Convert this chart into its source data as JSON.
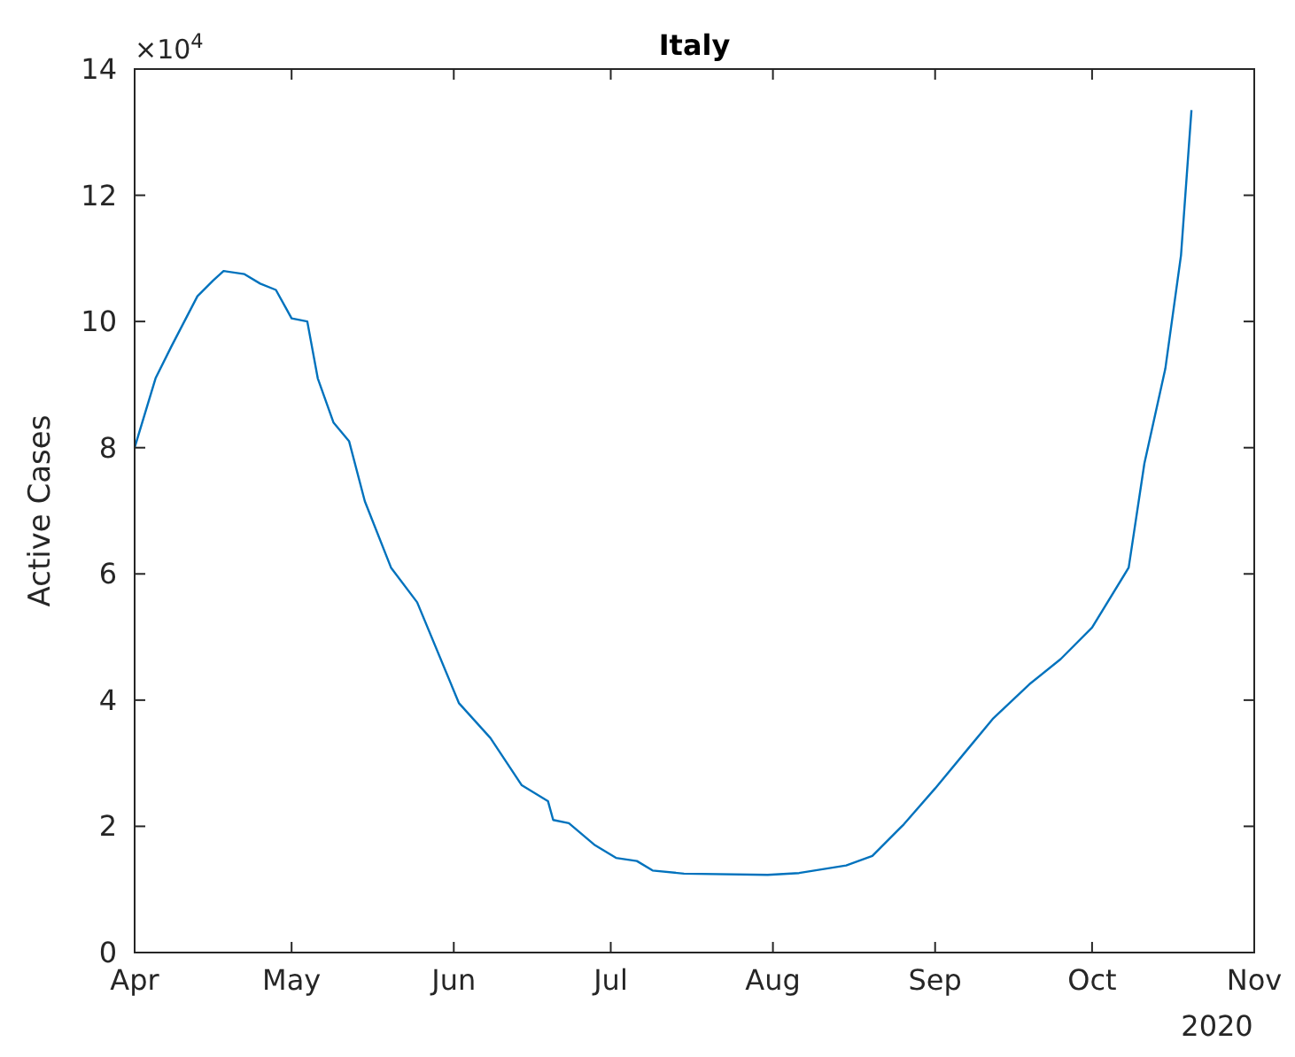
{
  "chart_data": {
    "type": "line",
    "title": "Italy",
    "ylabel": "Active Cases",
    "x": [
      "2020-04-01",
      "2020-04-05",
      "2020-04-08",
      "2020-04-13",
      "2020-04-16",
      "2020-04-18",
      "2020-04-22",
      "2020-04-25",
      "2020-04-28",
      "2020-04-30",
      "2020-05-01",
      "2020-05-04",
      "2020-05-06",
      "2020-05-09",
      "2020-05-12",
      "2020-05-15",
      "2020-05-20",
      "2020-05-25",
      "2020-05-31",
      "2020-06-02",
      "2020-06-08",
      "2020-06-14",
      "2020-06-19",
      "2020-06-20",
      "2020-06-23",
      "2020-06-28",
      "2020-07-02",
      "2020-07-06",
      "2020-07-09",
      "2020-07-15",
      "2020-07-31",
      "2020-08-06",
      "2020-08-15",
      "2020-08-20",
      "2020-08-26",
      "2020-09-01",
      "2020-09-07",
      "2020-09-12",
      "2020-09-19",
      "2020-09-25",
      "2020-10-01",
      "2020-10-08",
      "2020-10-11",
      "2020-10-15",
      "2020-10-18",
      "2020-10-20"
    ],
    "series": [
      {
        "color": "#0072bd",
        "values": [
          8.0,
          9.1,
          9.6,
          10.4,
          10.65,
          10.8,
          10.75,
          10.6,
          10.5,
          10.2,
          10.05,
          10.0,
          9.1,
          8.4,
          8.1,
          7.15,
          6.1,
          5.55,
          4.35,
          3.95,
          3.4,
          2.65,
          2.4,
          2.1,
          2.05,
          1.7,
          1.5,
          1.45,
          1.3,
          1.25,
          1.23,
          1.26,
          1.38,
          1.53,
          2.03,
          2.6,
          3.2,
          3.7,
          4.25,
          4.65,
          5.15,
          6.1,
          7.75,
          9.25,
          11.05,
          13.35
        ]
      }
    ],
    "xlim": [
      "2020-04-01",
      "2020-11-01"
    ],
    "xticks": [
      {
        "value": "2020-04-01",
        "label": "Apr"
      },
      {
        "value": "2020-05-01",
        "label": "May"
      },
      {
        "value": "2020-06-01",
        "label": "Jun"
      },
      {
        "value": "2020-07-01",
        "label": "Jul"
      },
      {
        "value": "2020-08-01",
        "label": "Aug"
      },
      {
        "value": "2020-09-01",
        "label": "Sep"
      },
      {
        "value": "2020-10-01",
        "label": "Oct"
      },
      {
        "value": "2020-11-01",
        "label": "Nov"
      }
    ],
    "ylim": [
      0,
      14
    ],
    "yticks": [
      0,
      2,
      4,
      6,
      8,
      10,
      12,
      14
    ],
    "annotations": [
      "×10$^{4}$",
      "2020"
    ],
    "grid": false,
    "marker": "none",
    "line_style": "solid"
  }
}
